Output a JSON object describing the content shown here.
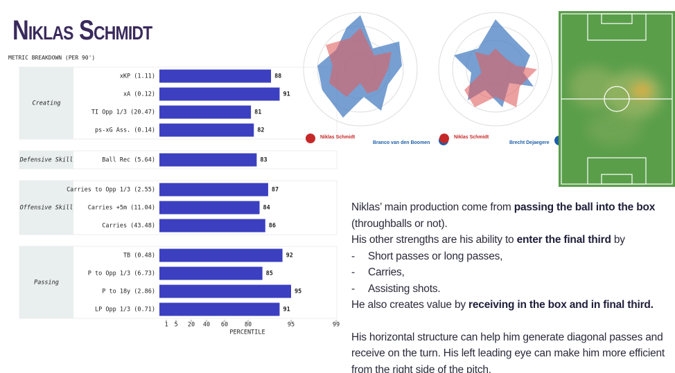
{
  "title": "Niklas Schmidt",
  "subtitle": "METRIC BREAKDOWN (PER 90')",
  "chart_data": {
    "type": "bar",
    "orientation": "horizontal",
    "color": "#3b3fc0",
    "groups": [
      {
        "label": "Creating",
        "categories": [
          "xKP (1.11)",
          "xA (0.12)",
          "TI Opp 1/3 (20.47)",
          "ps-xG Ass. (0.14)"
        ],
        "values": [
          88,
          91,
          81,
          82
        ]
      },
      {
        "label": "Defensive Skill",
        "categories": [
          "Ball Rec (5.64)"
        ],
        "values": [
          83
        ]
      },
      {
        "label": "Offensive Skill",
        "categories": [
          "Carries to Opp 1/3 (2.55)",
          "Carries +5m (11.04)",
          "Carries (43.48)"
        ],
        "values": [
          87,
          84,
          86
        ]
      },
      {
        "label": "Passing",
        "categories": [
          "TB (0.48)",
          "P to Opp 1/3 (6.73)",
          "P to 18y (2.86)",
          "LP Opp 1/3 (0.71)"
        ],
        "values": [
          92,
          85,
          95,
          91
        ]
      }
    ],
    "xlabel": "PERCENTILE",
    "xlim": [
      0,
      99
    ],
    "xticks": [
      1,
      5,
      20,
      40,
      60,
      80,
      95,
      99
    ]
  },
  "radars": [
    {
      "player": "Niklas Schmidt",
      "comparison": "Branco van den Boomen"
    },
    {
      "player": "Niklas Schmidt",
      "comparison": "Brecht Dejaegere"
    }
  ],
  "commentary": [
    {
      "runs": [
        {
          "text": "Niklas’ main production come from "
        },
        {
          "text": "passing the ball into the box",
          "bold": true
        },
        {
          "text": " (throughballs or not)."
        }
      ]
    },
    {
      "runs": [
        {
          "text": "His other strengths are his ability to "
        },
        {
          "text": "enter the final third",
          "bold": true
        },
        {
          "text": " by"
        }
      ]
    },
    {
      "items": [
        "Short passes or long passes,",
        "Carries,",
        "Assisting shots."
      ]
    },
    {
      "runs": [
        {
          "text": "He also creates value by "
        },
        {
          "text": "receiving in the box and in final third.",
          "bold": true
        }
      ]
    },
    {
      "runs": [
        {
          "text": "His horizontal structure can help him generate diagonal passes and receive on the turn. His left leading eye can make him more efficient from the right side of the pitch."
        }
      ]
    }
  ]
}
